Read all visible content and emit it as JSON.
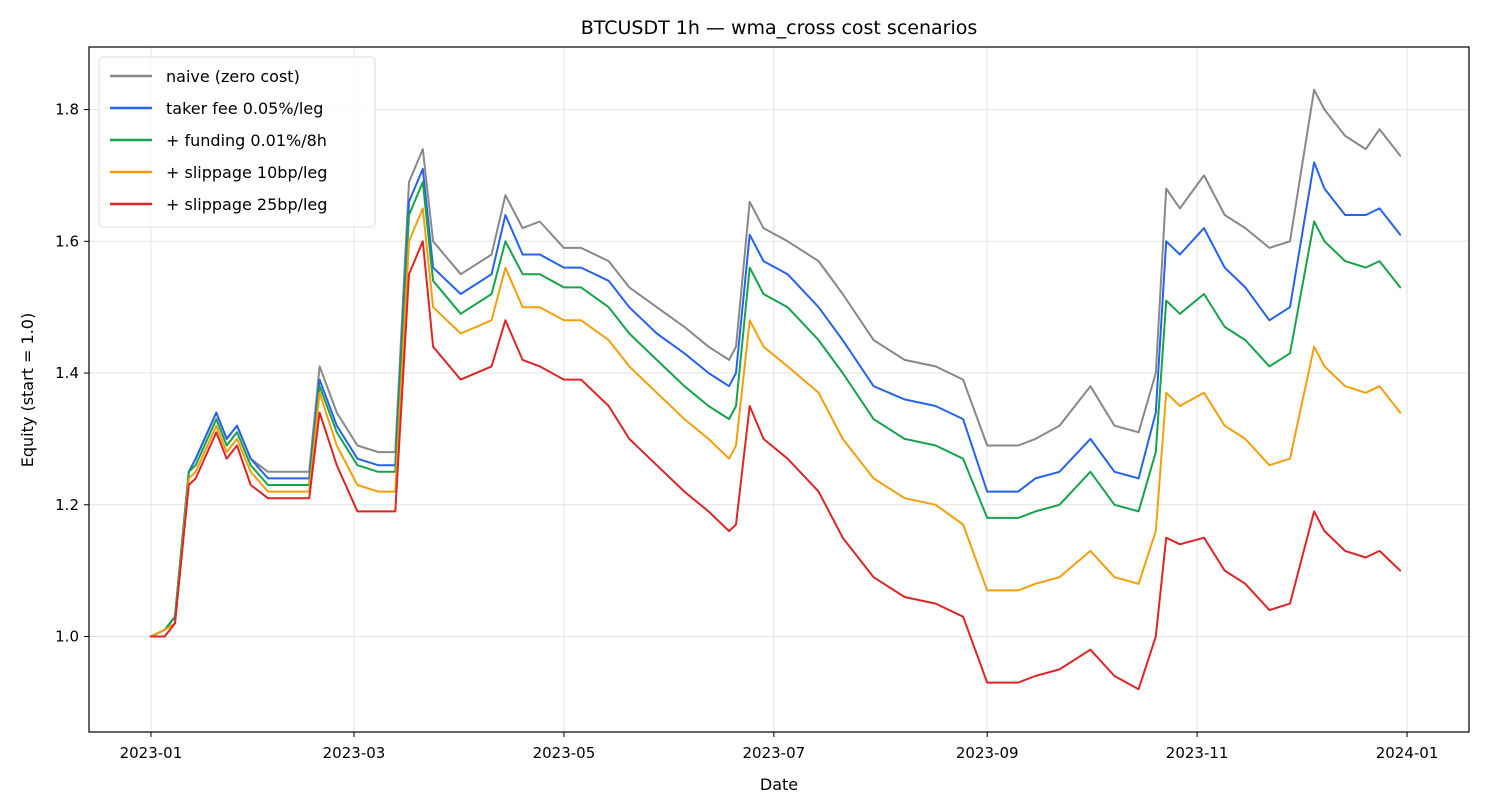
{
  "chart_data": {
    "type": "line",
    "title": "BTCUSDT 1h — wma_cross cost scenarios",
    "xlabel": "Date",
    "ylabel": "Equity (start = 1.0)",
    "grid": true,
    "legend_position": "top-left",
    "xlim": [
      "2022-12-14",
      "2024-01-19"
    ],
    "ylim": [
      0.855,
      1.895
    ],
    "x_ticks": [
      "2023-01",
      "2023-03",
      "2023-05",
      "2023-07",
      "2023-09",
      "2023-11",
      "2024-01"
    ],
    "y_ticks": [
      1.0,
      1.2,
      1.4,
      1.6,
      1.8
    ],
    "y_tick_labels": [
      "1.0",
      "1.2",
      "1.4",
      "1.6",
      "1.8"
    ],
    "series": [
      {
        "name": "naive (zero cost)",
        "color": "#888888",
        "x": [
          "2023-01-01",
          "2023-01-05",
          "2023-01-08",
          "2023-01-12",
          "2023-01-14",
          "2023-01-20",
          "2023-01-23",
          "2023-01-26",
          "2023-01-30",
          "2023-02-04",
          "2023-02-16",
          "2023-02-19",
          "2023-02-24",
          "2023-03-02",
          "2023-03-08",
          "2023-03-13",
          "2023-03-17",
          "2023-03-21",
          "2023-03-24",
          "2023-04-01",
          "2023-04-10",
          "2023-04-14",
          "2023-04-19",
          "2023-04-24",
          "2023-05-01",
          "2023-05-06",
          "2023-05-14",
          "2023-05-20",
          "2023-05-28",
          "2023-06-05",
          "2023-06-12",
          "2023-06-18",
          "2023-06-20",
          "2023-06-24",
          "2023-06-28",
          "2023-07-05",
          "2023-07-14",
          "2023-07-21",
          "2023-07-30",
          "2023-08-08",
          "2023-08-17",
          "2023-08-25",
          "2023-09-01",
          "2023-09-10",
          "2023-09-15",
          "2023-09-22",
          "2023-10-01",
          "2023-10-08",
          "2023-10-15",
          "2023-10-20",
          "2023-10-23",
          "2023-10-27",
          "2023-11-03",
          "2023-11-09",
          "2023-11-15",
          "2023-11-22",
          "2023-11-28",
          "2023-12-05",
          "2023-12-08",
          "2023-12-14",
          "2023-12-20",
          "2023-12-24",
          "2023-12-30"
        ],
        "y": [
          1.0,
          1.01,
          1.03,
          1.25,
          1.27,
          1.34,
          1.3,
          1.32,
          1.27,
          1.25,
          1.25,
          1.41,
          1.34,
          1.29,
          1.28,
          1.28,
          1.69,
          1.74,
          1.6,
          1.55,
          1.58,
          1.67,
          1.62,
          1.63,
          1.59,
          1.59,
          1.57,
          1.53,
          1.5,
          1.47,
          1.44,
          1.42,
          1.44,
          1.66,
          1.62,
          1.6,
          1.57,
          1.52,
          1.45,
          1.42,
          1.41,
          1.39,
          1.29,
          1.29,
          1.3,
          1.32,
          1.38,
          1.32,
          1.31,
          1.4,
          1.68,
          1.65,
          1.7,
          1.64,
          1.62,
          1.59,
          1.6,
          1.83,
          1.8,
          1.76,
          1.74,
          1.77,
          1.73
        ]
      },
      {
        "name": "taker fee 0.05%/leg",
        "color": "#2563eb",
        "x": [
          "2023-01-01",
          "2023-01-05",
          "2023-01-08",
          "2023-01-12",
          "2023-01-14",
          "2023-01-20",
          "2023-01-23",
          "2023-01-26",
          "2023-01-30",
          "2023-02-04",
          "2023-02-16",
          "2023-02-19",
          "2023-02-24",
          "2023-03-02",
          "2023-03-08",
          "2023-03-13",
          "2023-03-17",
          "2023-03-21",
          "2023-03-24",
          "2023-04-01",
          "2023-04-10",
          "2023-04-14",
          "2023-04-19",
          "2023-04-24",
          "2023-05-01",
          "2023-05-06",
          "2023-05-14",
          "2023-05-20",
          "2023-05-28",
          "2023-06-05",
          "2023-06-12",
          "2023-06-18",
          "2023-06-20",
          "2023-06-24",
          "2023-06-28",
          "2023-07-05",
          "2023-07-14",
          "2023-07-21",
          "2023-07-30",
          "2023-08-08",
          "2023-08-17",
          "2023-08-25",
          "2023-09-01",
          "2023-09-10",
          "2023-09-15",
          "2023-09-22",
          "2023-10-01",
          "2023-10-08",
          "2023-10-15",
          "2023-10-20",
          "2023-10-23",
          "2023-10-27",
          "2023-11-03",
          "2023-11-09",
          "2023-11-15",
          "2023-11-22",
          "2023-11-28",
          "2023-12-05",
          "2023-12-08",
          "2023-12-14",
          "2023-12-20",
          "2023-12-24",
          "2023-12-30"
        ],
        "y": [
          1.0,
          1.01,
          1.03,
          1.25,
          1.27,
          1.34,
          1.3,
          1.32,
          1.27,
          1.24,
          1.24,
          1.39,
          1.32,
          1.27,
          1.26,
          1.26,
          1.66,
          1.71,
          1.56,
          1.52,
          1.55,
          1.64,
          1.58,
          1.58,
          1.56,
          1.56,
          1.54,
          1.5,
          1.46,
          1.43,
          1.4,
          1.38,
          1.4,
          1.61,
          1.57,
          1.55,
          1.5,
          1.45,
          1.38,
          1.36,
          1.35,
          1.33,
          1.22,
          1.22,
          1.24,
          1.25,
          1.3,
          1.25,
          1.24,
          1.34,
          1.6,
          1.58,
          1.62,
          1.56,
          1.53,
          1.48,
          1.5,
          1.72,
          1.68,
          1.64,
          1.64,
          1.65,
          1.61
        ]
      },
      {
        "name": "+ funding 0.01%/8h",
        "color": "#16a34a",
        "x": [
          "2023-01-01",
          "2023-01-05",
          "2023-01-08",
          "2023-01-12",
          "2023-01-14",
          "2023-01-20",
          "2023-01-23",
          "2023-01-26",
          "2023-01-30",
          "2023-02-04",
          "2023-02-16",
          "2023-02-19",
          "2023-02-24",
          "2023-03-02",
          "2023-03-08",
          "2023-03-13",
          "2023-03-17",
          "2023-03-21",
          "2023-03-24",
          "2023-04-01",
          "2023-04-10",
          "2023-04-14",
          "2023-04-19",
          "2023-04-24",
          "2023-05-01",
          "2023-05-06",
          "2023-05-14",
          "2023-05-20",
          "2023-05-28",
          "2023-06-05",
          "2023-06-12",
          "2023-06-18",
          "2023-06-20",
          "2023-06-24",
          "2023-06-28",
          "2023-07-05",
          "2023-07-14",
          "2023-07-21",
          "2023-07-30",
          "2023-08-08",
          "2023-08-17",
          "2023-08-25",
          "2023-09-01",
          "2023-09-10",
          "2023-09-15",
          "2023-09-22",
          "2023-10-01",
          "2023-10-08",
          "2023-10-15",
          "2023-10-20",
          "2023-10-23",
          "2023-10-27",
          "2023-11-03",
          "2023-11-09",
          "2023-11-15",
          "2023-11-22",
          "2023-11-28",
          "2023-12-05",
          "2023-12-08",
          "2023-12-14",
          "2023-12-20",
          "2023-12-24",
          "2023-12-30"
        ],
        "y": [
          1.0,
          1.01,
          1.03,
          1.25,
          1.26,
          1.33,
          1.29,
          1.31,
          1.26,
          1.23,
          1.23,
          1.38,
          1.31,
          1.26,
          1.25,
          1.25,
          1.64,
          1.69,
          1.54,
          1.49,
          1.52,
          1.6,
          1.55,
          1.55,
          1.53,
          1.53,
          1.5,
          1.46,
          1.42,
          1.38,
          1.35,
          1.33,
          1.35,
          1.56,
          1.52,
          1.5,
          1.45,
          1.4,
          1.33,
          1.3,
          1.29,
          1.27,
          1.18,
          1.18,
          1.19,
          1.2,
          1.25,
          1.2,
          1.19,
          1.28,
          1.51,
          1.49,
          1.52,
          1.47,
          1.45,
          1.41,
          1.43,
          1.63,
          1.6,
          1.57,
          1.56,
          1.57,
          1.53
        ]
      },
      {
        "name": "+ slippage 10bp/leg",
        "color": "#f59e0b",
        "x": [
          "2023-01-01",
          "2023-01-05",
          "2023-01-08",
          "2023-01-12",
          "2023-01-14",
          "2023-01-20",
          "2023-01-23",
          "2023-01-26",
          "2023-01-30",
          "2023-02-04",
          "2023-02-16",
          "2023-02-19",
          "2023-02-24",
          "2023-03-02",
          "2023-03-08",
          "2023-03-13",
          "2023-03-17",
          "2023-03-21",
          "2023-03-24",
          "2023-04-01",
          "2023-04-10",
          "2023-04-14",
          "2023-04-19",
          "2023-04-24",
          "2023-05-01",
          "2023-05-06",
          "2023-05-14",
          "2023-05-20",
          "2023-05-28",
          "2023-06-05",
          "2023-06-12",
          "2023-06-18",
          "2023-06-20",
          "2023-06-24",
          "2023-06-28",
          "2023-07-05",
          "2023-07-14",
          "2023-07-21",
          "2023-07-30",
          "2023-08-08",
          "2023-08-17",
          "2023-08-25",
          "2023-09-01",
          "2023-09-10",
          "2023-09-15",
          "2023-09-22",
          "2023-10-01",
          "2023-10-08",
          "2023-10-15",
          "2023-10-20",
          "2023-10-23",
          "2023-10-27",
          "2023-11-03",
          "2023-11-09",
          "2023-11-15",
          "2023-11-22",
          "2023-11-28",
          "2023-12-05",
          "2023-12-08",
          "2023-12-14",
          "2023-12-20",
          "2023-12-24",
          "2023-12-30"
        ],
        "y": [
          1.0,
          1.01,
          1.02,
          1.24,
          1.25,
          1.32,
          1.28,
          1.3,
          1.25,
          1.22,
          1.22,
          1.37,
          1.29,
          1.23,
          1.22,
          1.22,
          1.6,
          1.65,
          1.5,
          1.46,
          1.48,
          1.56,
          1.5,
          1.5,
          1.48,
          1.48,
          1.45,
          1.41,
          1.37,
          1.33,
          1.3,
          1.27,
          1.29,
          1.48,
          1.44,
          1.41,
          1.37,
          1.3,
          1.24,
          1.21,
          1.2,
          1.17,
          1.07,
          1.07,
          1.08,
          1.09,
          1.13,
          1.09,
          1.08,
          1.16,
          1.37,
          1.35,
          1.37,
          1.32,
          1.3,
          1.26,
          1.27,
          1.44,
          1.41,
          1.38,
          1.37,
          1.38,
          1.34
        ]
      },
      {
        "name": "+ slippage 25bp/leg",
        "color": "#dc2626",
        "x": [
          "2023-01-01",
          "2023-01-05",
          "2023-01-08",
          "2023-01-12",
          "2023-01-14",
          "2023-01-20",
          "2023-01-23",
          "2023-01-26",
          "2023-01-30",
          "2023-02-04",
          "2023-02-16",
          "2023-02-19",
          "2023-02-24",
          "2023-03-02",
          "2023-03-08",
          "2023-03-13",
          "2023-03-17",
          "2023-03-21",
          "2023-03-24",
          "2023-04-01",
          "2023-04-10",
          "2023-04-14",
          "2023-04-19",
          "2023-04-24",
          "2023-05-01",
          "2023-05-06",
          "2023-05-14",
          "2023-05-20",
          "2023-05-28",
          "2023-06-05",
          "2023-06-12",
          "2023-06-18",
          "2023-06-20",
          "2023-06-24",
          "2023-06-28",
          "2023-07-05",
          "2023-07-14",
          "2023-07-21",
          "2023-07-30",
          "2023-08-08",
          "2023-08-17",
          "2023-08-25",
          "2023-09-01",
          "2023-09-10",
          "2023-09-15",
          "2023-09-22",
          "2023-10-01",
          "2023-10-08",
          "2023-10-15",
          "2023-10-20",
          "2023-10-23",
          "2023-10-27",
          "2023-11-03",
          "2023-11-09",
          "2023-11-15",
          "2023-11-22",
          "2023-11-28",
          "2023-12-05",
          "2023-12-08",
          "2023-12-14",
          "2023-12-20",
          "2023-12-24",
          "2023-12-30"
        ],
        "y": [
          1.0,
          1.0,
          1.02,
          1.23,
          1.24,
          1.31,
          1.27,
          1.29,
          1.23,
          1.21,
          1.21,
          1.34,
          1.26,
          1.19,
          1.19,
          1.19,
          1.55,
          1.6,
          1.44,
          1.39,
          1.41,
          1.48,
          1.42,
          1.41,
          1.39,
          1.39,
          1.35,
          1.3,
          1.26,
          1.22,
          1.19,
          1.16,
          1.17,
          1.35,
          1.3,
          1.27,
          1.22,
          1.15,
          1.09,
          1.06,
          1.05,
          1.03,
          0.93,
          0.93,
          0.94,
          0.95,
          0.98,
          0.94,
          0.92,
          1.0,
          1.15,
          1.14,
          1.15,
          1.1,
          1.08,
          1.04,
          1.05,
          1.19,
          1.16,
          1.13,
          1.12,
          1.13,
          1.1
        ]
      }
    ]
  }
}
